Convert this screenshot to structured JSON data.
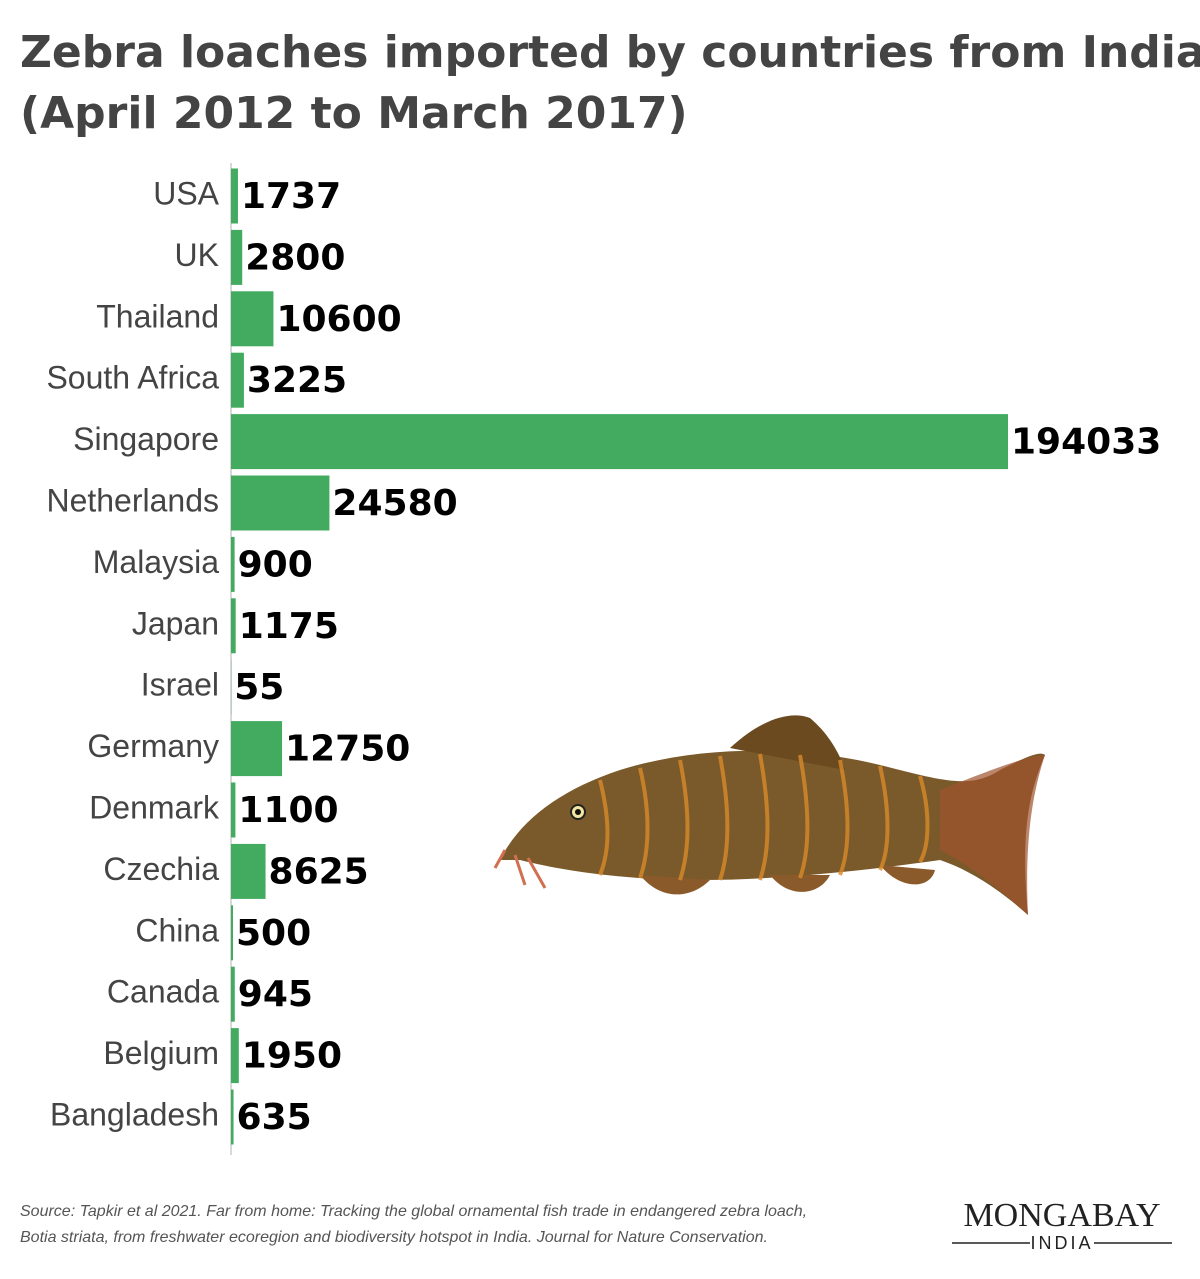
{
  "chart_data": {
    "type": "barh",
    "title": [
      "Zebra loaches imported by countries from India",
      "(April 2012 to March 2017)"
    ],
    "categories": [
      "USA",
      "UK",
      "Thailand",
      "South Africa",
      "Singapore",
      "Netherlands",
      "Malaysia",
      "Japan",
      "Israel",
      "Germany",
      "Denmark",
      "Czechia",
      "China",
      "Canada",
      "Belgium",
      "Bangladesh"
    ],
    "values": [
      1737,
      2800,
      10600,
      3225,
      194033,
      24580,
      900,
      1175,
      55,
      12750,
      1100,
      8625,
      500,
      945,
      1950,
      635
    ],
    "color": "#42ab5f",
    "source": [
      "Source: Tapkir et al 2021. Far from home: Tracking the global ornamental fish trade in endangered zebra loach,",
      "Botia striata, from freshwater ecoregion and biodiversity hotspot in India. Journal for Nature Conservation."
    ],
    "logo": {
      "name": "MONGABAY",
      "region": "INDIA"
    }
  }
}
